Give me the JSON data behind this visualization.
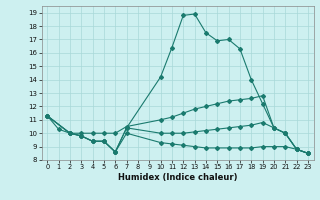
{
  "title": "",
  "xlabel": "Humidex (Indice chaleur)",
  "xlim": [
    -0.5,
    23.5
  ],
  "ylim": [
    8,
    19.5
  ],
  "xticks": [
    0,
    1,
    2,
    3,
    4,
    5,
    6,
    7,
    8,
    9,
    10,
    11,
    12,
    13,
    14,
    15,
    16,
    17,
    18,
    19,
    20,
    21,
    22,
    23
  ],
  "yticks": [
    8,
    9,
    10,
    11,
    12,
    13,
    14,
    15,
    16,
    17,
    18,
    19
  ],
  "bg_color": "#cdf0f0",
  "line_color": "#1a7a6e",
  "grid_color": "#a8d8d8",
  "line1_x": [
    0,
    1,
    2,
    3,
    4,
    5,
    6,
    7,
    10,
    11,
    12,
    13,
    14,
    15,
    16,
    17,
    18,
    19,
    20,
    21,
    22,
    23
  ],
  "line1_y": [
    11.3,
    10.3,
    10.0,
    9.8,
    9.4,
    9.4,
    8.6,
    10.4,
    14.2,
    16.4,
    18.8,
    18.9,
    17.5,
    16.9,
    17.0,
    16.3,
    14.0,
    12.2,
    10.4,
    10.0,
    8.8,
    8.5
  ],
  "line2_x": [
    0,
    2,
    3,
    4,
    5,
    6,
    7,
    10,
    11,
    12,
    13,
    14,
    15,
    16,
    17,
    18,
    19,
    20,
    21,
    22,
    23
  ],
  "line2_y": [
    11.3,
    10.0,
    10.0,
    10.0,
    10.0,
    10.0,
    10.5,
    11.0,
    11.2,
    11.5,
    11.8,
    12.0,
    12.2,
    12.4,
    12.5,
    12.6,
    12.8,
    10.4,
    10.0,
    8.8,
    8.5
  ],
  "line3_x": [
    0,
    2,
    3,
    4,
    5,
    6,
    7,
    10,
    11,
    12,
    13,
    14,
    15,
    16,
    17,
    18,
    19,
    20,
    21,
    22,
    23
  ],
  "line3_y": [
    11.3,
    10.0,
    9.8,
    9.4,
    9.4,
    8.6,
    10.4,
    10.0,
    10.0,
    10.0,
    10.1,
    10.2,
    10.3,
    10.4,
    10.5,
    10.6,
    10.8,
    10.4,
    10.0,
    8.8,
    8.5
  ],
  "line4_x": [
    0,
    2,
    3,
    4,
    5,
    6,
    7,
    10,
    11,
    12,
    13,
    14,
    15,
    16,
    17,
    18,
    19,
    20,
    21,
    22,
    23
  ],
  "line4_y": [
    11.3,
    10.0,
    9.8,
    9.4,
    9.4,
    8.6,
    10.0,
    9.3,
    9.2,
    9.1,
    9.0,
    8.9,
    8.9,
    8.9,
    8.9,
    8.9,
    9.0,
    9.0,
    9.0,
    8.8,
    8.5
  ]
}
